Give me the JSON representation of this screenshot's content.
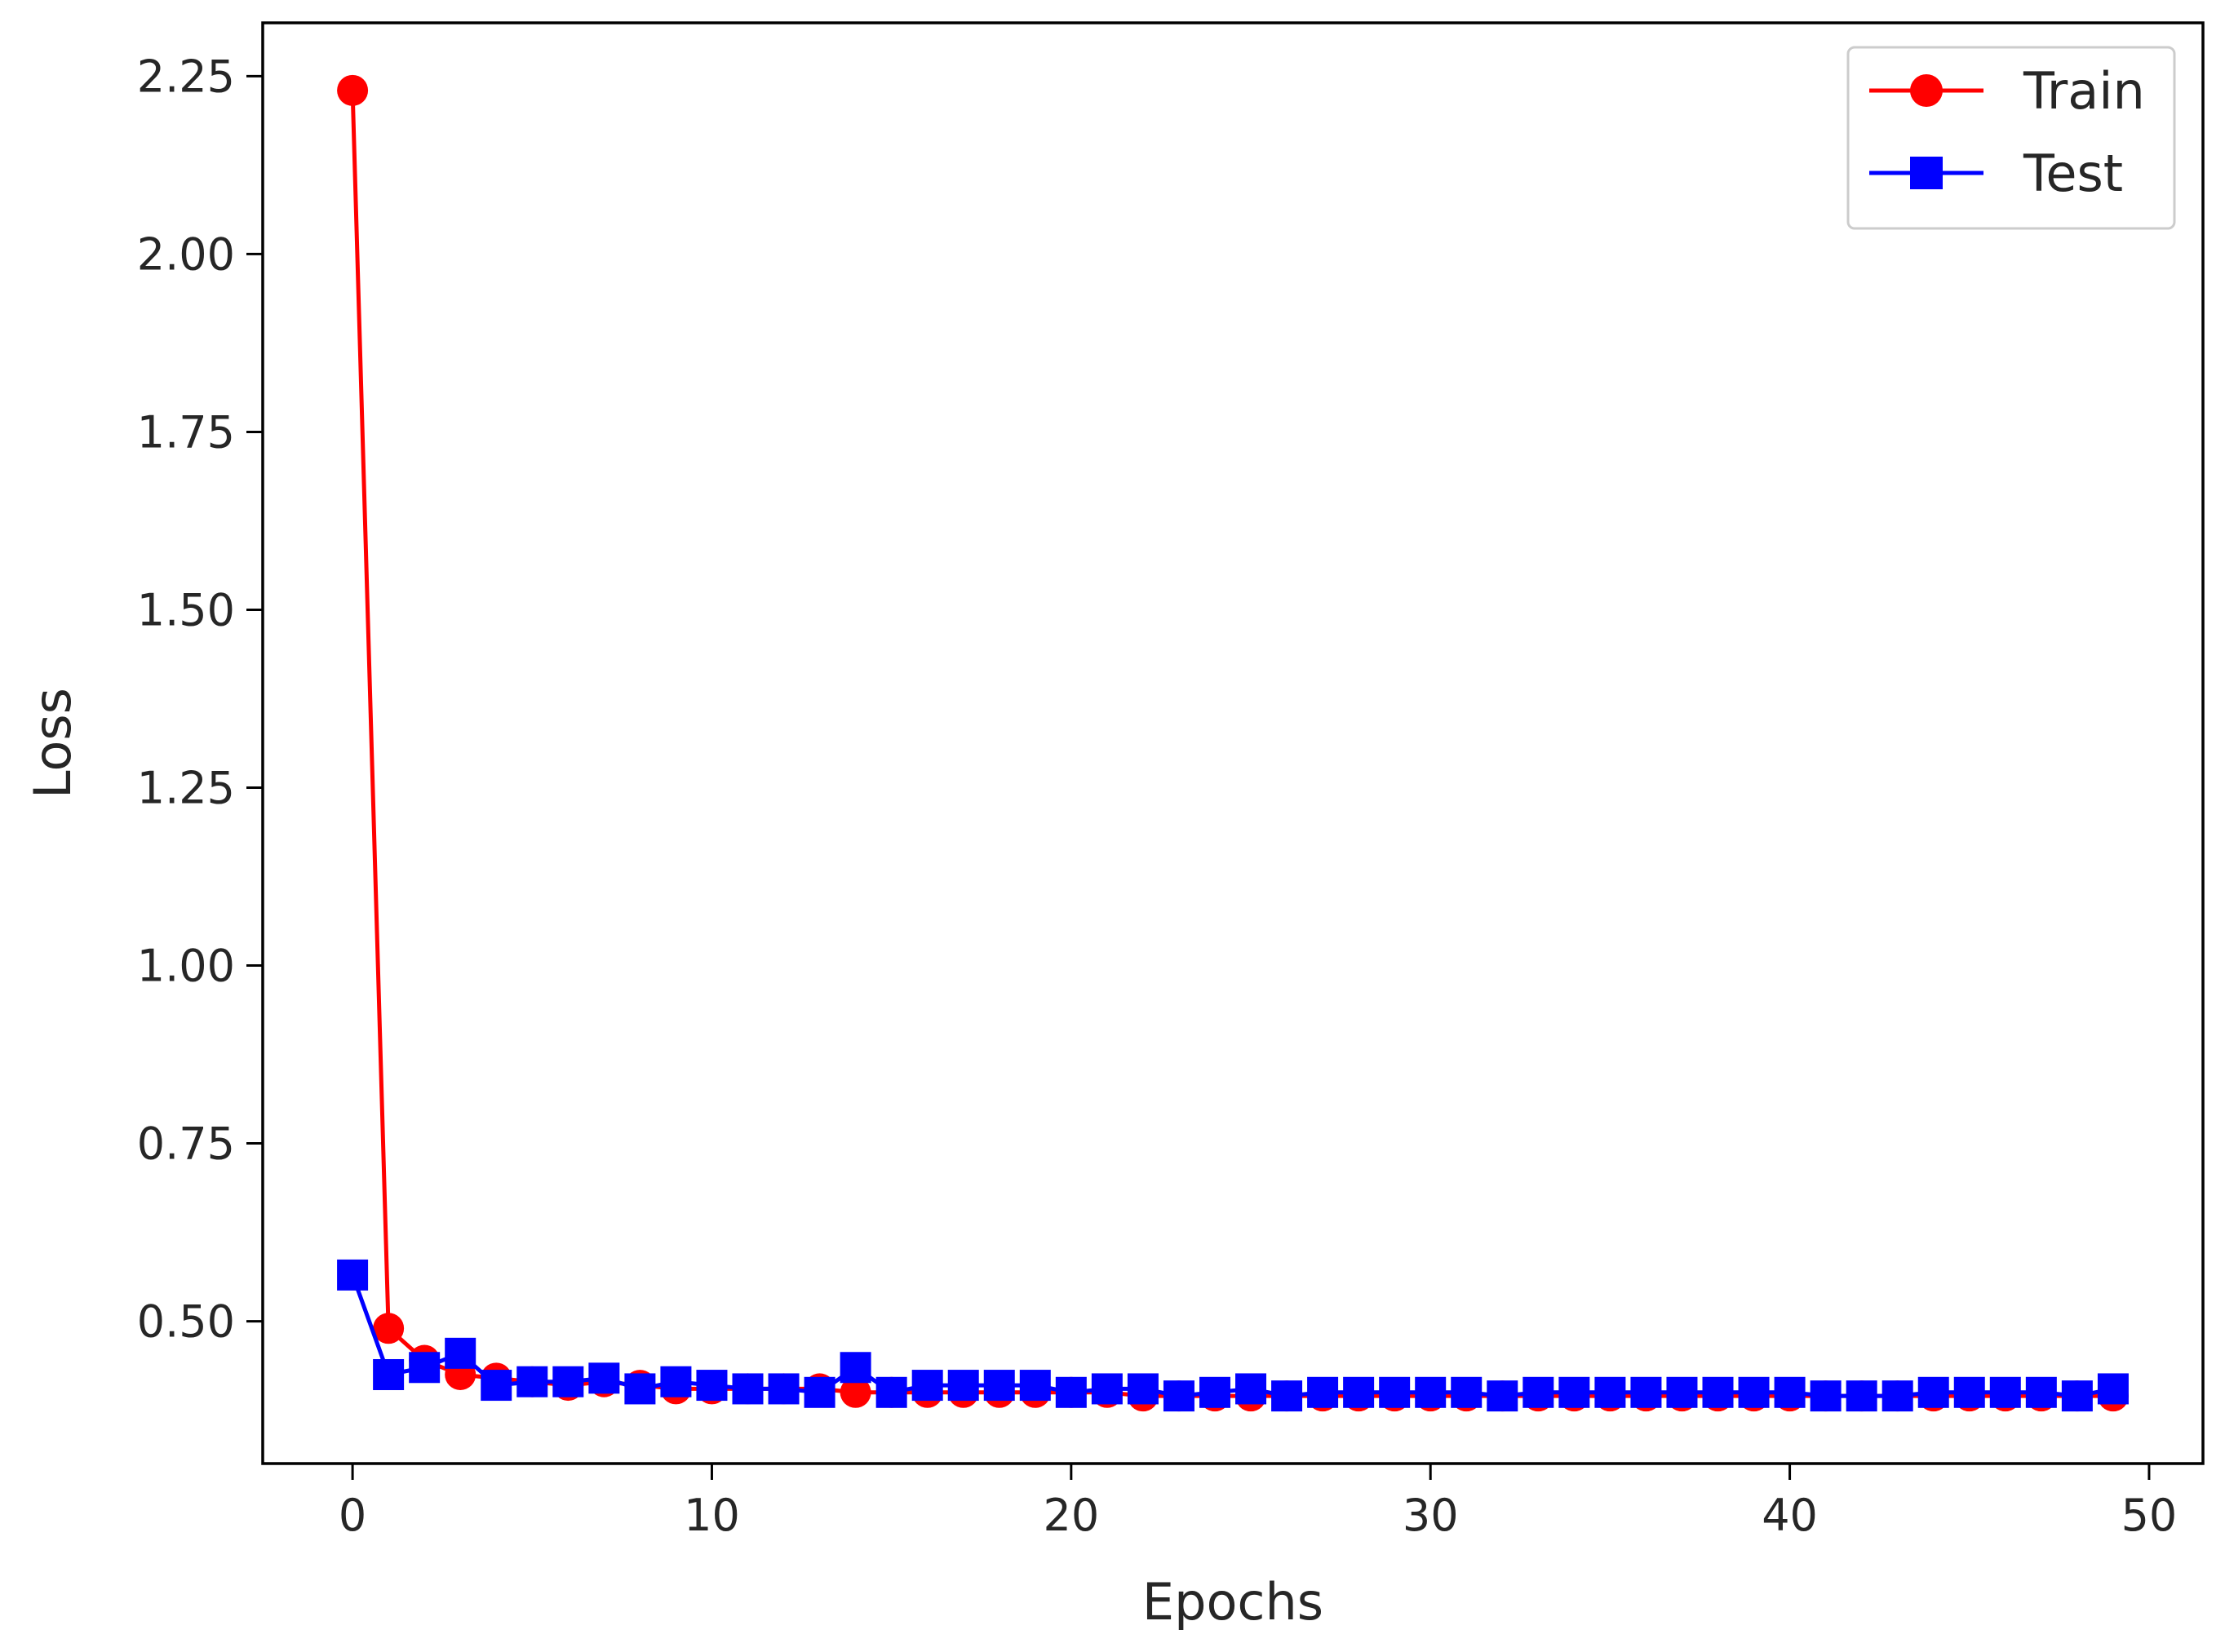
{
  "chart_data": {
    "type": "line",
    "title": "",
    "xlabel": "Epochs",
    "ylabel": "Loss",
    "xlim": [
      -2.5,
      51.5
    ],
    "ylim": [
      0.3,
      2.325
    ],
    "xticks": [
      0,
      10,
      20,
      30,
      40,
      50
    ],
    "yticks": [
      0.5,
      0.75,
      1.0,
      1.25,
      1.5,
      1.75,
      2.0,
      2.25
    ],
    "xtick_labels": [
      "0",
      "10",
      "20",
      "30",
      "40",
      "50"
    ],
    "ytick_labels": [
      "0.50",
      "0.75",
      "1.00",
      "1.25",
      "1.50",
      "1.75",
      "2.00",
      "2.25"
    ],
    "grid": false,
    "legend_position": "top-right",
    "x": [
      0,
      1,
      2,
      3,
      4,
      5,
      6,
      7,
      8,
      9,
      10,
      11,
      12,
      13,
      14,
      15,
      16,
      17,
      18,
      19,
      20,
      21,
      22,
      23,
      24,
      25,
      26,
      27,
      28,
      29,
      30,
      31,
      32,
      33,
      34,
      35,
      36,
      37,
      38,
      39,
      40,
      41,
      42,
      43,
      44,
      45,
      46,
      47,
      48,
      49
    ],
    "series": [
      {
        "name": "Train",
        "color": "#ff0000",
        "marker": "circle",
        "values": [
          2.23,
          0.49,
          0.445,
          0.425,
          0.42,
          0.415,
          0.41,
          0.415,
          0.41,
          0.405,
          0.405,
          0.405,
          0.405,
          0.405,
          0.4,
          0.4,
          0.4,
          0.4,
          0.4,
          0.4,
          0.4,
          0.4,
          0.395,
          0.395,
          0.395,
          0.395,
          0.395,
          0.395,
          0.395,
          0.395,
          0.395,
          0.395,
          0.395,
          0.395,
          0.395,
          0.395,
          0.395,
          0.395,
          0.395,
          0.395,
          0.395,
          0.395,
          0.395,
          0.395,
          0.395,
          0.395,
          0.395,
          0.395,
          0.395,
          0.395
        ]
      },
      {
        "name": "Test",
        "color": "#0000ff",
        "marker": "square",
        "values": [
          0.565,
          0.425,
          0.435,
          0.455,
          0.41,
          0.415,
          0.415,
          0.42,
          0.405,
          0.415,
          0.41,
          0.405,
          0.405,
          0.4,
          0.435,
          0.4,
          0.41,
          0.41,
          0.41,
          0.41,
          0.4,
          0.405,
          0.405,
          0.395,
          0.4,
          0.405,
          0.395,
          0.4,
          0.4,
          0.4,
          0.4,
          0.4,
          0.395,
          0.4,
          0.4,
          0.4,
          0.4,
          0.4,
          0.4,
          0.4,
          0.4,
          0.395,
          0.395,
          0.395,
          0.4,
          0.4,
          0.4,
          0.4,
          0.395,
          0.405
        ]
      }
    ]
  }
}
